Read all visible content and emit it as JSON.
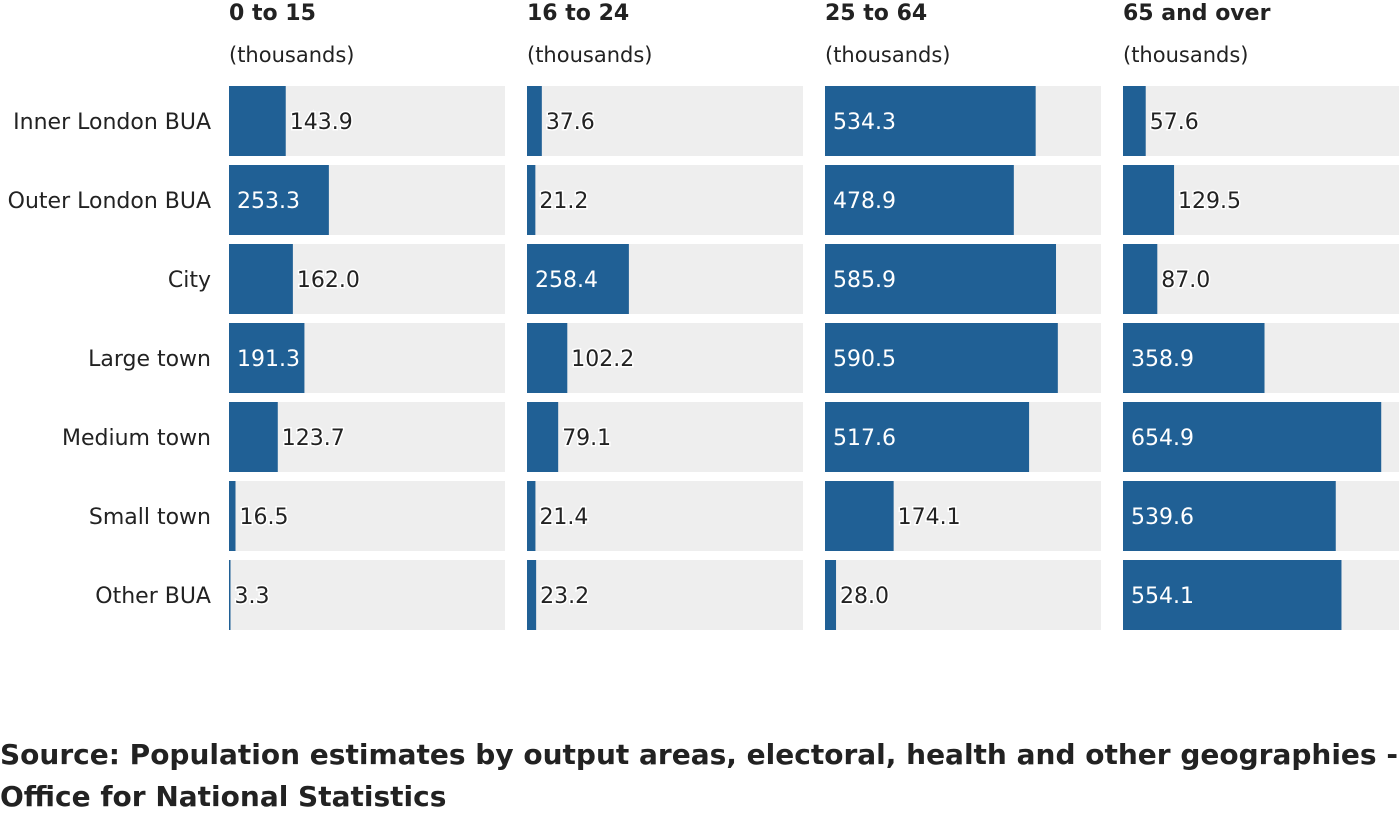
{
  "chart_data": {
    "type": "bar",
    "orientation": "horizontal",
    "categories": [
      "Inner London BUA",
      "Outer London BUA",
      "City",
      "Large town",
      "Medium town",
      "Small town",
      "Other BUA"
    ],
    "series": [
      {
        "name": "0 to 15",
        "unit": "(thousands)",
        "values": [
          143.9,
          253.3,
          162.0,
          191.3,
          123.7,
          16.5,
          3.3
        ],
        "value_labels": [
          "143.9",
          "253.3",
          "162.0",
          "191.3",
          "123.7",
          "16.5",
          "3.3"
        ]
      },
      {
        "name": "16 to 24",
        "unit": "(thousands)",
        "values": [
          37.6,
          21.2,
          258.4,
          102.2,
          79.1,
          21.4,
          23.2
        ],
        "value_labels": [
          "37.6",
          "21.2",
          "258.4",
          "102.2",
          "79.1",
          "21.4",
          "23.2"
        ]
      },
      {
        "name": "25 to 64",
        "unit": "(thousands)",
        "values": [
          534.3,
          478.9,
          585.9,
          590.5,
          517.6,
          174.1,
          28.0
        ],
        "value_labels": [
          "534.3",
          "478.9",
          "585.9",
          "590.5",
          "517.6",
          "174.1",
          "28.0"
        ]
      },
      {
        "name": "65 and over",
        "unit": "(thousands)",
        "values": [
          57.6,
          129.5,
          87.0,
          358.9,
          654.9,
          539.6,
          554.1
        ],
        "value_labels": [
          "57.6",
          "129.5",
          "87.0",
          "358.9",
          "654.9",
          "539.6",
          "554.1"
        ]
      }
    ],
    "xlim": [
      0,
      700
    ],
    "grid": false,
    "colors": {
      "bar": "#206095",
      "track": "#eeeeee"
    }
  },
  "source": "Source: Population estimates by output areas, electoral, health and other geographies - Office for National Statistics"
}
